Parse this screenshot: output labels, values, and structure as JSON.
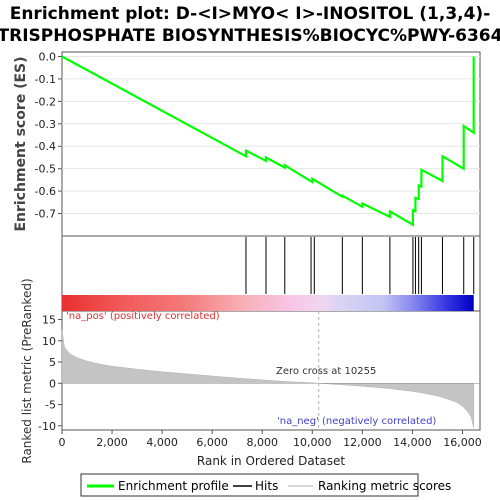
{
  "title_line1": "Enrichment plot: D-<I>MYO< I>-INOSITOL (1,3,4)-",
  "title_line2": "TRISPHOSPHATE BIOSYNTHESIS%BIOCYC%PWY-6364",
  "chart_data": {
    "type": "line",
    "es_panel": {
      "ylabel": "Enrichment score (ES)",
      "ylim": [
        -0.8,
        0.02
      ],
      "yticks": [
        0.0,
        -0.1,
        -0.2,
        -0.3,
        -0.4,
        -0.5,
        -0.6,
        -0.7
      ],
      "ytick_labels": [
        "0.0",
        "-0.1",
        "-0.2",
        "-0.3",
        "-0.4",
        "-0.5",
        "-0.6",
        "-0.7"
      ],
      "series": [
        {
          "name": "Enrichment profile",
          "color": "#00ff00",
          "x": [
            0,
            7350,
            7350,
            8150,
            8150,
            8900,
            8900,
            10000,
            10000,
            11200,
            11200,
            12000,
            12000,
            13100,
            13100,
            14020,
            14020,
            14120,
            14120,
            14250,
            14250,
            14360,
            14360,
            15200,
            15200,
            16050,
            16050,
            16450,
            16450
          ],
          "y": [
            0.0,
            -0.445,
            -0.42,
            -0.465,
            -0.45,
            -0.495,
            -0.485,
            -0.56,
            -0.545,
            -0.625,
            -0.62,
            -0.67,
            -0.655,
            -0.715,
            -0.69,
            -0.75,
            -0.685,
            -0.69,
            -0.63,
            -0.635,
            -0.575,
            -0.58,
            -0.505,
            -0.555,
            -0.445,
            -0.5,
            -0.31,
            -0.34,
            0.0
          ]
        }
      ]
    },
    "hits_panel": {
      "hit_positions": [
        7350,
        8150,
        8900,
        9950,
        10080,
        11200,
        12000,
        13100,
        14020,
        14120,
        14250,
        14360,
        15200,
        16050,
        16450
      ]
    },
    "rank_panel": {
      "ylabel": "Ranked list metric (PreRanked)",
      "xlabel": "Rank in Ordered Dataset",
      "ylim": [
        -11,
        17
      ],
      "yticks": [
        15,
        10,
        5,
        0,
        -5,
        -10
      ],
      "ytick_labels": [
        "15",
        "10",
        "5",
        "0",
        "-5",
        "-10"
      ],
      "xlim": [
        0,
        16700
      ],
      "xticks": [
        0,
        2000,
        4000,
        6000,
        8000,
        10000,
        12000,
        14000,
        16000
      ],
      "xtick_labels": [
        "0",
        "2,000",
        "4,000",
        "6,000",
        "8,000",
        "10,000",
        "12,000",
        "14,000",
        "16,000"
      ],
      "metric_curve_x": [
        0,
        100,
        300,
        600,
        1000,
        1500,
        2000,
        3000,
        4000,
        5000,
        6000,
        7000,
        8000,
        9000,
        10000,
        10255,
        11000,
        12000,
        13000,
        14000,
        14500,
        15000,
        15500,
        15800,
        16000,
        16200,
        16350,
        16450
      ],
      "metric_curve_y": [
        12.5,
        8.5,
        7.0,
        6.0,
        5.2,
        4.5,
        4.0,
        3.3,
        2.7,
        2.2,
        1.7,
        1.2,
        0.8,
        0.4,
        0.1,
        0.0,
        -0.3,
        -0.7,
        -1.2,
        -1.9,
        -2.4,
        -3.0,
        -3.9,
        -4.6,
        -5.4,
        -6.6,
        -8.0,
        -10.5
      ],
      "zero_cross_label": "Zero cross at 10255",
      "zero_cross_x": 10255,
      "pos_label": "'na_pos' (positively correlated)",
      "neg_label": "'na_neg' (negatively correlated)"
    },
    "legend": {
      "position": "bottom",
      "items": [
        {
          "label": "Enrichment profile",
          "color": "#00ff00"
        },
        {
          "label": "Hits",
          "color": "#000000"
        },
        {
          "label": "Ranking metric scores",
          "color": "#c8c8c8"
        }
      ]
    }
  }
}
